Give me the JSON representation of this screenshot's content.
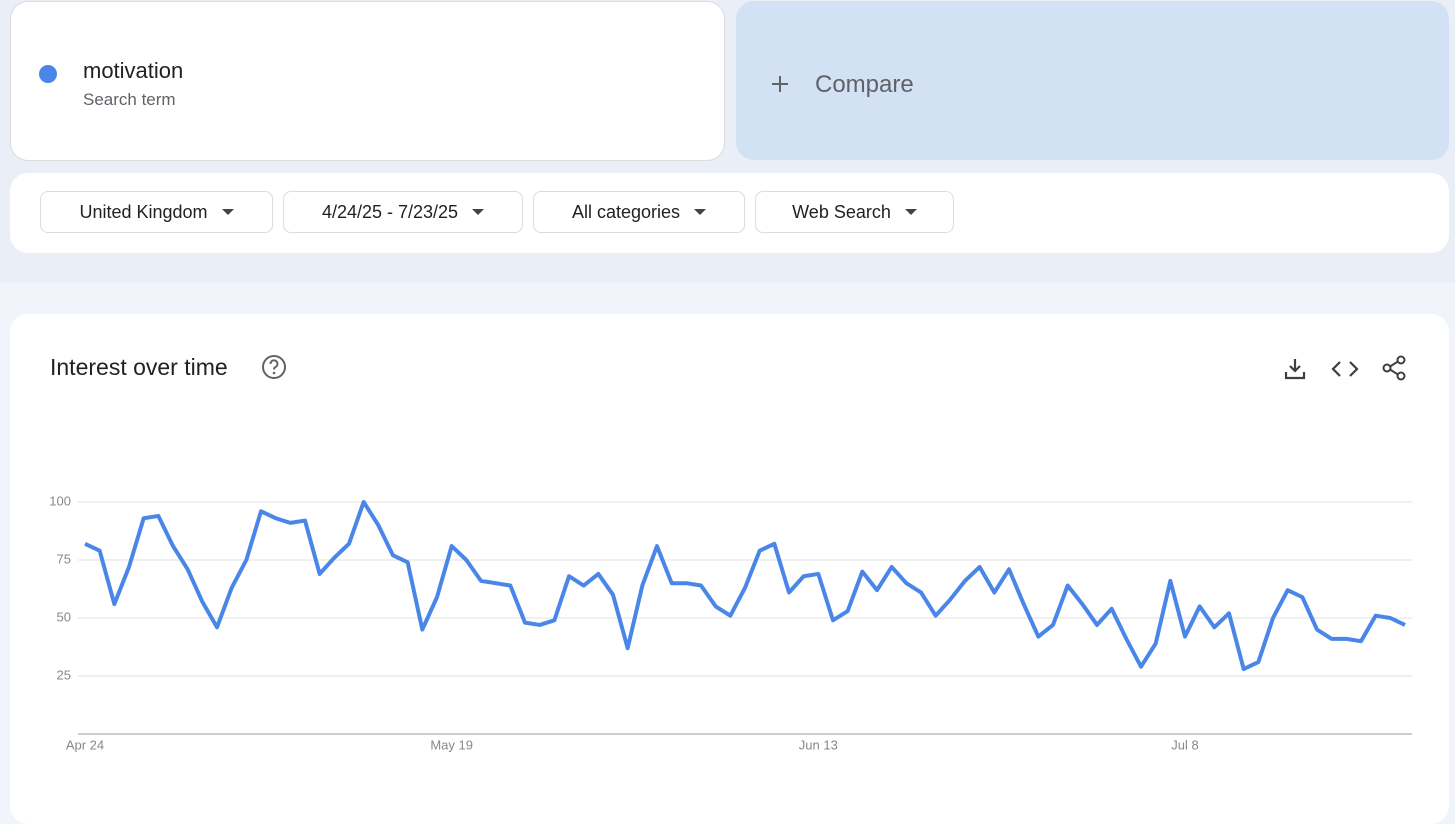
{
  "search": {
    "term": "motivation",
    "term_label": "Search term",
    "compare": "Compare"
  },
  "filters": [
    "United Kingdom",
    "4/24/25 - 7/23/25",
    "All categories",
    "Web Search"
  ],
  "chart_data": {
    "type": "line",
    "title": "Interest over time",
    "categories": [
      "Apr 24",
      null,
      null,
      null,
      null,
      null,
      null,
      null,
      null,
      null,
      null,
      null,
      null,
      null,
      null,
      null,
      null,
      null,
      null,
      null,
      null,
      null,
      null,
      null,
      null,
      "May 19",
      null,
      null,
      null,
      null,
      null,
      null,
      null,
      null,
      null,
      null,
      null,
      null,
      null,
      null,
      null,
      null,
      null,
      null,
      null,
      null,
      null,
      null,
      null,
      null,
      "Jun 13",
      null,
      null,
      null,
      null,
      null,
      null,
      null,
      null,
      null,
      null,
      null,
      null,
      null,
      null,
      null,
      null,
      null,
      null,
      null,
      null,
      null,
      null,
      null,
      null,
      "Jul 8",
      null,
      null,
      null,
      null,
      null,
      null,
      null,
      null,
      null,
      null,
      null,
      null,
      null,
      null,
      null
    ],
    "series": [
      {
        "name": "motivation",
        "color": "#4a86e8",
        "values": [
          82,
          79,
          56,
          72,
          93,
          94,
          81,
          71,
          57,
          46,
          63,
          75,
          96,
          93,
          91,
          92,
          69,
          76,
          82,
          100,
          90,
          77,
          74,
          45,
          59,
          81,
          75,
          66,
          65,
          64,
          48,
          47,
          49,
          68,
          64,
          69,
          60,
          37,
          64,
          81,
          65,
          65,
          64,
          55,
          51,
          63,
          79,
          82,
          61,
          68,
          69,
          49,
          53,
          70,
          62,
          72,
          65,
          61,
          51,
          58,
          66,
          72,
          61,
          71,
          56,
          42,
          47,
          64,
          56,
          47,
          54,
          41,
          29,
          39,
          66,
          42,
          55,
          46,
          52,
          28,
          31,
          50,
          62,
          59,
          45,
          41,
          41,
          40,
          51,
          50,
          47
        ]
      }
    ],
    "ylim": [
      0,
      100
    ],
    "yticks": [
      25,
      50,
      75,
      100
    ],
    "grid": true
  }
}
